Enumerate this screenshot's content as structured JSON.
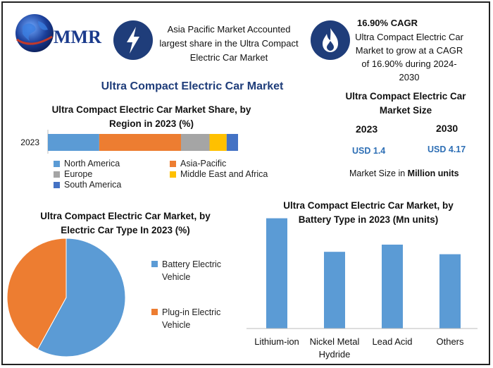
{
  "brand": {
    "logo_text": "MMR"
  },
  "facts": {
    "left": "Asia Pacific Market Accounted largest share in the Ultra Compact Electric Car Market",
    "right_title": "16.90% CAGR",
    "right_body": "Ultra Compact Electric Car Market to grow at a CAGR of 16.90% during 2024-2030"
  },
  "main_title": "Ultra Compact Electric Car Market",
  "market_size": {
    "title": "Ultra Compact Electric Car Market Size",
    "year_a": "2023",
    "year_b": "2030",
    "value_a": "USD 1.4",
    "value_b": "USD 4.17",
    "note_prefix": "Market Size in ",
    "note_bold": "Million units"
  },
  "colors": {
    "north_america": "#5b9bd5",
    "asia_pacific": "#ed7d31",
    "europe": "#a5a5a5",
    "mea": "#ffc000",
    "south_america": "#4472c4",
    "bar": "#5b9bd5",
    "accent": "#1f3d7a"
  },
  "chart_data": [
    {
      "type": "bar",
      "orientation": "horizontal-stacked",
      "title": "Ultra Compact Electric Car Market Share, by Region in 2023 (%)",
      "categories": [
        "2023"
      ],
      "series": [
        {
          "name": "North America",
          "values": [
            27
          ]
        },
        {
          "name": "Asia-Pacific",
          "values": [
            43
          ]
        },
        {
          "name": "Europe",
          "values": [
            15
          ]
        },
        {
          "name": "Middle East and Africa",
          "values": [
            9
          ]
        },
        {
          "name": "South America",
          "values": [
            6
          ]
        }
      ],
      "xlim": [
        0,
        100
      ],
      "legend": "bottom"
    },
    {
      "type": "pie",
      "title": "Ultra Compact Electric Car Market, by Electric Car Type In 2023 (%)",
      "labels": [
        "Battery Electric Vehicle",
        "Plug-in Electric Vehicle"
      ],
      "values": [
        58,
        42
      ],
      "legend": "right"
    },
    {
      "type": "bar",
      "title": "Ultra Compact Electric Car Market, by Battery Type in 2023 (Mn units)",
      "categories": [
        "Lithium-ion",
        "Nickel Metal Hydride",
        "Lead Acid",
        "Others"
      ],
      "values": [
        0.46,
        0.32,
        0.35,
        0.31
      ],
      "ylim": [
        0,
        0.5
      ],
      "grid": false
    }
  ]
}
